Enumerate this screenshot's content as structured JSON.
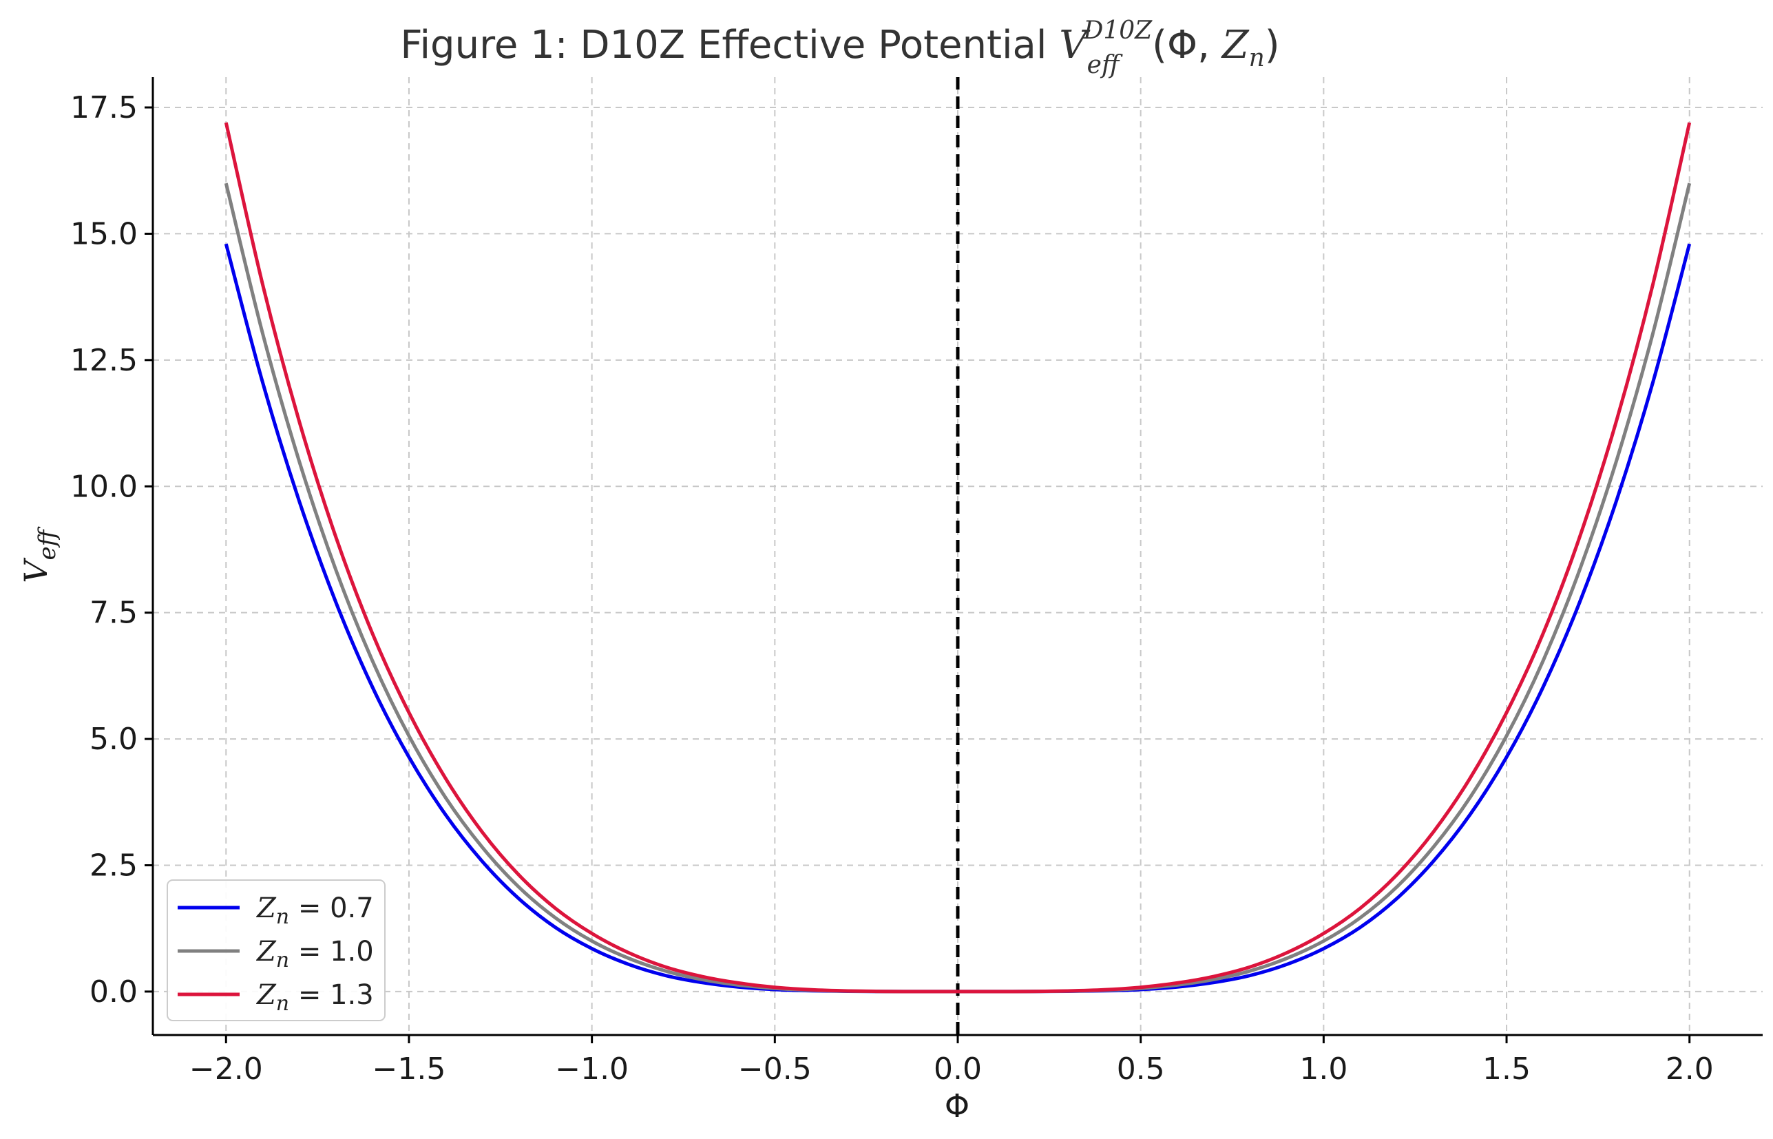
{
  "chart_data": {
    "type": "line",
    "title": {
      "prefix": "Figure 1: D10Z Effective Potential ",
      "symbol": "V",
      "superscript": "D10Z",
      "subscript": "eff",
      "args_open": "(Φ, ",
      "args_var": "Z",
      "args_sub": "n",
      "args_close": ")"
    },
    "xlabel": "Φ",
    "ylabel": {
      "symbol": "V",
      "subscript": "eff"
    },
    "xlim": [
      -2.2,
      2.2
    ],
    "ylim": [
      -0.86,
      18.1
    ],
    "x_ticks": [
      "−2.0",
      "−1.5",
      "−1.0",
      "−0.5",
      "0.0",
      "0.5",
      "1.0",
      "1.5",
      "2.0"
    ],
    "x_tick_values": [
      -2.0,
      -1.5,
      -1.0,
      -0.5,
      0.0,
      0.5,
      1.0,
      1.5,
      2.0
    ],
    "y_ticks": [
      "0.0",
      "2.5",
      "5.0",
      "7.5",
      "10.0",
      "12.5",
      "15.0",
      "17.5"
    ],
    "y_tick_values": [
      0.0,
      2.5,
      5.0,
      7.5,
      10.0,
      12.5,
      15.0,
      17.5
    ],
    "grid": true,
    "grid_style": "dashed",
    "legend_position": "lower-left",
    "vertical_line": {
      "x": 0.0,
      "style": "dashed",
      "color": "#000000"
    },
    "x": [
      -2.0,
      -1.9,
      -1.8,
      -1.7,
      -1.6,
      -1.5,
      -1.4,
      -1.3,
      -1.2,
      -1.1,
      -1.0,
      -0.9,
      -0.8,
      -0.7,
      -0.6,
      -0.5,
      -0.4,
      -0.3,
      -0.2,
      -0.1,
      0.0,
      0.1,
      0.2,
      0.3,
      0.4,
      0.5,
      0.6,
      0.7,
      0.8,
      0.9,
      1.0,
      1.1,
      1.2,
      1.3,
      1.4,
      1.5,
      1.6,
      1.7,
      1.8,
      1.9,
      2.0
    ],
    "series": [
      {
        "name": "Zn = 0.7",
        "label": {
          "var": "Z",
          "sub": "n",
          "value": " = 0.7"
        },
        "color": "#0000ee",
        "values": [
          14.8,
          12.06,
          9.71,
          7.71,
          6.03,
          4.64,
          3.5,
          2.58,
          1.84,
          1.27,
          0.85,
          0.54,
          0.32,
          0.18,
          0.09,
          0.04,
          0.015,
          0.005,
          0.001,
          0.0,
          0.0,
          0.0,
          0.001,
          0.005,
          0.015,
          0.04,
          0.09,
          0.18,
          0.32,
          0.54,
          0.85,
          1.27,
          1.84,
          2.58,
          3.5,
          4.64,
          6.03,
          7.71,
          9.71,
          12.06,
          14.8
        ]
      },
      {
        "name": "Zn = 1.0",
        "label": {
          "var": "Z",
          "sub": "n",
          "value": " = 1.0"
        },
        "color": "#808080",
        "values": [
          16.0,
          13.03,
          10.5,
          8.35,
          6.55,
          5.06,
          3.84,
          2.86,
          2.07,
          1.46,
          1.0,
          0.66,
          0.41,
          0.24,
          0.13,
          0.0625,
          0.026,
          0.008,
          0.002,
          0.0,
          0.0,
          0.0,
          0.002,
          0.008,
          0.026,
          0.0625,
          0.13,
          0.24,
          0.41,
          0.66,
          1.0,
          1.46,
          2.07,
          2.86,
          3.84,
          5.06,
          6.55,
          8.35,
          10.5,
          13.03,
          16.0
        ]
      },
      {
        "name": "Zn = 1.3",
        "label": {
          "var": "Z",
          "sub": "n",
          "value": " = 1.3"
        },
        "color": "#dc143c",
        "values": [
          17.2,
          14.0,
          11.29,
          9.0,
          7.09,
          5.52,
          4.22,
          3.16,
          2.31,
          1.65,
          1.15,
          0.77,
          0.49,
          0.3,
          0.17,
          0.085,
          0.036,
          0.012,
          0.003,
          0.0,
          0.0,
          0.0,
          0.003,
          0.012,
          0.036,
          0.085,
          0.17,
          0.3,
          0.49,
          0.77,
          1.15,
          1.65,
          2.31,
          3.16,
          4.22,
          5.52,
          7.09,
          9.0,
          11.29,
          14.0,
          17.2
        ]
      }
    ]
  }
}
